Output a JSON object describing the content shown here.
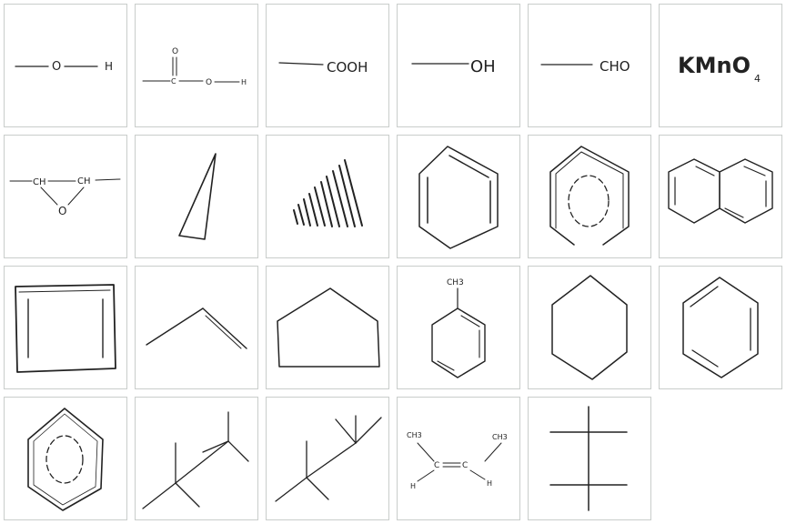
{
  "tiles": [
    {
      "name": "hydroxyl-group-sketch",
      "labels": {
        "o": "O",
        "h": "H"
      }
    },
    {
      "name": "carboxylic-acid-structure-sketch",
      "labels": {
        "o_top": "O",
        "c": "C",
        "o": "O",
        "h": "H"
      }
    },
    {
      "name": "cooh-group-sketch",
      "labels": {
        "text": "COOH"
      }
    },
    {
      "name": "oh-group-sketch",
      "labels": {
        "text": "OH"
      }
    },
    {
      "name": "cho-group-sketch",
      "labels": {
        "text": "CHO"
      }
    },
    {
      "name": "kmno4-formula",
      "labels": {
        "text": "KMnO",
        "sub": "4"
      }
    },
    {
      "name": "epoxide-sketch",
      "labels": {
        "ch1": "CH",
        "ch2": "CH",
        "o": "O"
      }
    },
    {
      "name": "wedge-bond-sketch",
      "labels": {}
    },
    {
      "name": "hashed-wedge-bond-sketch",
      "labels": {}
    },
    {
      "name": "benzene-kekule-sketch",
      "labels": {}
    },
    {
      "name": "benzene-circle-sketch",
      "labels": {}
    },
    {
      "name": "naphthalene-sketch",
      "labels": {}
    },
    {
      "name": "cyclobutadiene-sketch",
      "labels": {}
    },
    {
      "name": "propene-skeletal-sketch",
      "labels": {}
    },
    {
      "name": "cyclopentane-sketch",
      "labels": {}
    },
    {
      "name": "toluene-sketch",
      "labels": {
        "ch3": "CH3"
      }
    },
    {
      "name": "cyclohexane-sketch",
      "labels": {}
    },
    {
      "name": "benzene-kekule-sketch-2",
      "labels": {}
    },
    {
      "name": "benzene-circle-sketch-2",
      "labels": {}
    },
    {
      "name": "branched-alkane-sketch-1",
      "labels": {}
    },
    {
      "name": "branched-alkane-sketch-2",
      "labels": {}
    },
    {
      "name": "cis-2-butene-sketch",
      "labels": {
        "ch3_left": "CH3",
        "ch3_right": "CH3",
        "c1": "C",
        "c2": "C",
        "h_left": "H",
        "h_right": "H"
      }
    },
    {
      "name": "fischer-projection-sketch",
      "labels": {}
    }
  ]
}
